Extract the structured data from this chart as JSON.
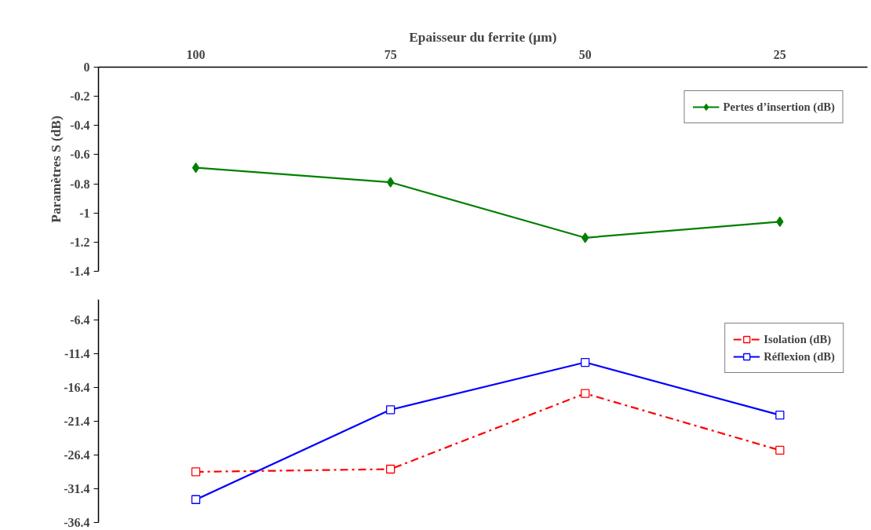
{
  "chart_data": [
    {
      "type": "line",
      "xlabel": "Epaisseur du ferrite (µm)",
      "ylabel": "Paramètres S (dB)",
      "categories": [
        "100",
        "75",
        "50",
        "25"
      ],
      "ylim": [
        -1.4,
        0
      ],
      "yticks": [
        0,
        -0.2,
        -0.4,
        -0.6,
        -0.8,
        -1,
        -1.2,
        -1.4
      ],
      "grid": false,
      "legend": "top right",
      "series": [
        {
          "name": "Pertes d’insertion (dB)",
          "color": "#008000",
          "marker": "diamond",
          "line_style": "solid",
          "values": [
            -0.69,
            -0.79,
            -1.17,
            -1.06
          ]
        }
      ]
    },
    {
      "type": "line",
      "categories": [
        "100",
        "75",
        "50",
        "25"
      ],
      "tick_labels": "y",
      "ylim": [
        -36.4,
        -3.4
      ],
      "yticks": [
        -6.4,
        -11.4,
        -16.4,
        -21.4,
        -26.4,
        -31.4,
        -36.4
      ],
      "grid": false,
      "legend": "top right",
      "series": [
        {
          "name": "Isolation (dB)",
          "color": "#ff0000",
          "marker": "square",
          "line_style": "dashed",
          "values": [
            -28.9,
            -28.5,
            -17.3,
            -25.7
          ]
        },
        {
          "name": "Réflexion (dB)",
          "color": "#0000ff",
          "marker": "square",
          "line_style": "solid",
          "values": [
            -33.0,
            -19.7,
            -12.7,
            -20.5
          ]
        }
      ]
    }
  ]
}
